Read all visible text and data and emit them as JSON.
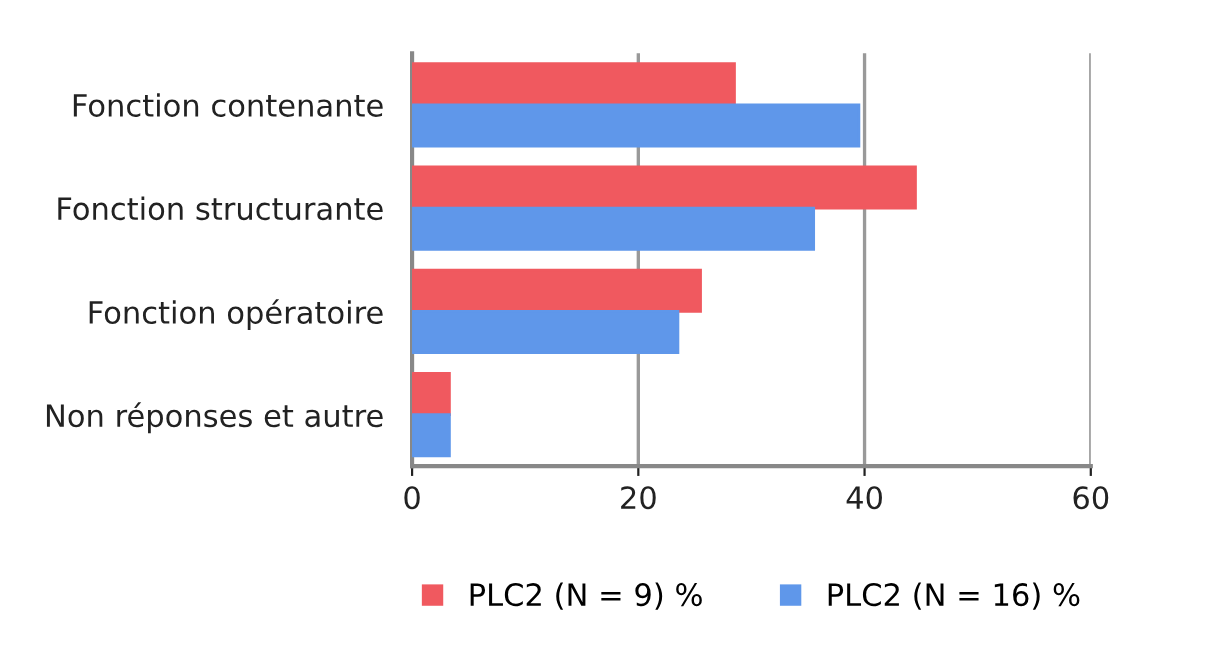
{
  "chart_data": {
    "type": "bar",
    "orientation": "horizontal",
    "categories": [
      "Fonction contenante",
      "Fonction structurante",
      "Fonction opératoire",
      "Non réponses et autre"
    ],
    "series": [
      {
        "name": "PLC2 (N = 9) %",
        "color": "#f0595f",
        "values": [
          28.5,
          44.5,
          25.5,
          3.3
        ]
      },
      {
        "name": "PLC2 (N = 16) %",
        "color": "#5f97ea",
        "values": [
          39.5,
          35.5,
          23.5,
          3.3
        ]
      }
    ],
    "xlim": [
      0,
      60
    ],
    "xticks": [
      0,
      20,
      40,
      60
    ],
    "grid": "x",
    "legend": "bottom"
  }
}
